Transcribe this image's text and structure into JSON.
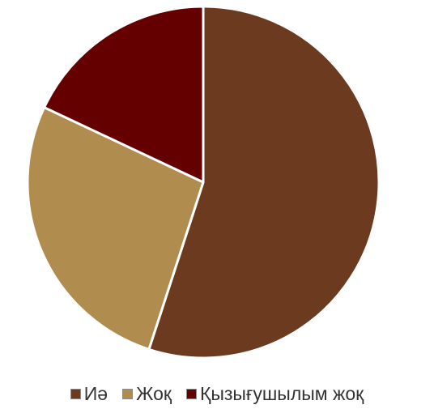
{
  "chart_data": {
    "type": "pie",
    "slices": [
      {
        "label": "Иә",
        "value": 55,
        "color": "#6b3a1f"
      },
      {
        "label": "Жоқ",
        "value": 27,
        "color": "#b08d4f"
      },
      {
        "label": "Қызығушылым жоқ",
        "value": 18,
        "color": "#650000"
      }
    ],
    "legend_position": "bottom",
    "start_angle": "12 o'clock",
    "direction": "clockwise",
    "slice_border_color": "#ffffff"
  }
}
